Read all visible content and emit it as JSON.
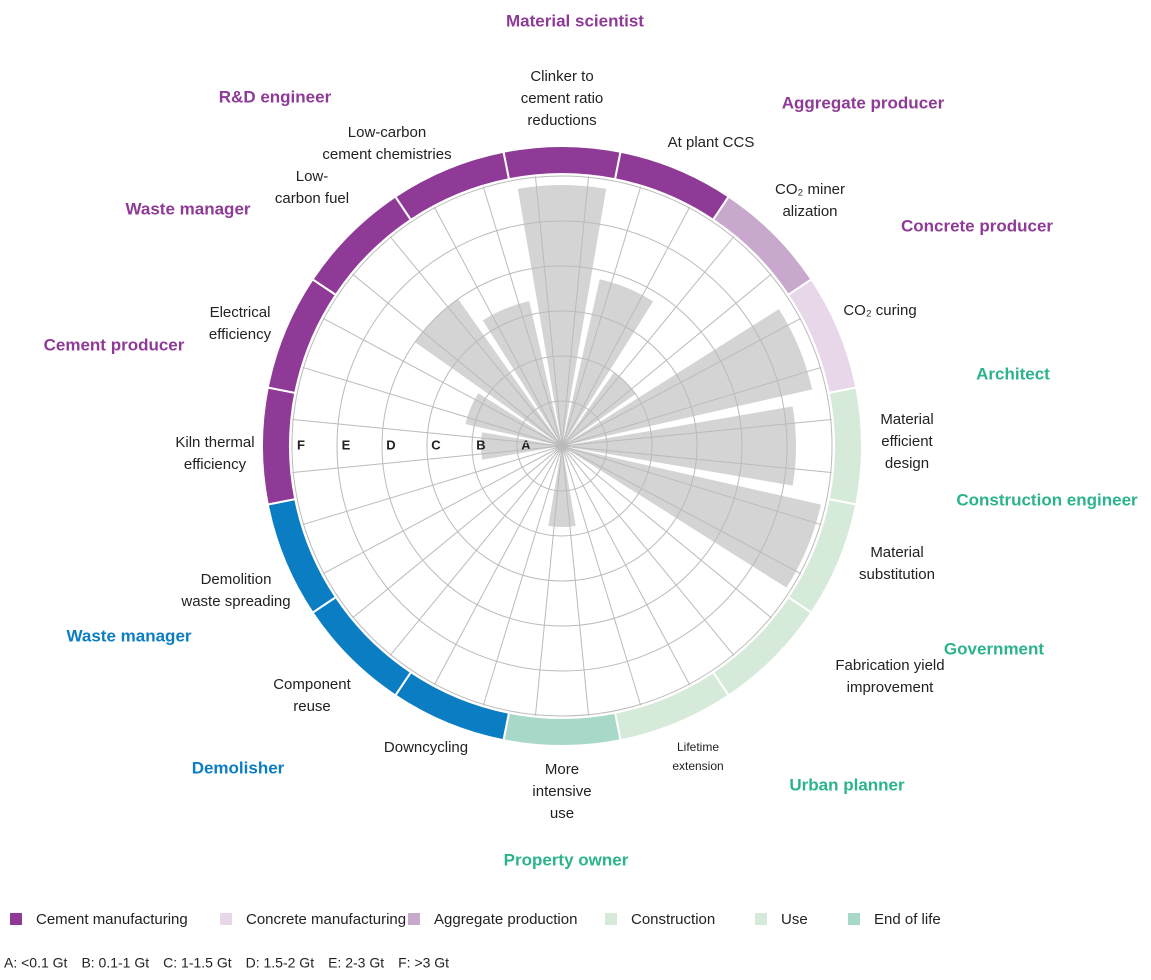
{
  "chart_data": {
    "type": "radial_bar",
    "roles": [
      {
        "name": "Material scientist",
        "color": "#8e3a96"
      },
      {
        "name": "Aggregate producer",
        "color": "#8e3a96"
      },
      {
        "name": "Concrete producer",
        "color": "#8e3a96"
      },
      {
        "name": "Architect",
        "color": "#2bb38e"
      },
      {
        "name": "Construction engineer",
        "color": "#2bb38e"
      },
      {
        "name": "Government",
        "color": "#2bb38e"
      },
      {
        "name": "Urban planner",
        "color": "#2bb38e"
      },
      {
        "name": "Property owner",
        "color": "#2bb38e"
      },
      {
        "name": "Demolisher",
        "color": "#0b7dc2"
      },
      {
        "name": "Waste manager",
        "color": "#0b7dc2"
      },
      {
        "name": "Cement producer",
        "color": "#8e3a96"
      },
      {
        "name": "Waste manager",
        "color": "#8e3a96"
      },
      {
        "name": "R&D engineer",
        "color": "#8e3a96"
      }
    ],
    "categories": [
      [
        "Clinker to",
        "cement ratio",
        "reductions"
      ],
      [
        "At plant CCS"
      ],
      [
        "CO₂ miner",
        "alization"
      ],
      [
        "CO₂ curing"
      ],
      [
        "Material",
        "efficient",
        "design"
      ],
      [
        "Material",
        "substitution"
      ],
      [
        "Fabrication yield",
        "improvement"
      ],
      [
        "Lifetime",
        "extension"
      ],
      [
        "More",
        "intensive",
        "use"
      ],
      [
        "Downcycling"
      ],
      [
        "Component",
        "reuse"
      ],
      [
        "Demolition",
        "waste spreading"
      ],
      [
        "Kiln thermal",
        "efficiency"
      ],
      [
        "Electrical",
        "efficiency"
      ],
      [
        "Low-",
        "carbon fuel"
      ],
      [
        "Low-carbon",
        "cement chemistries"
      ]
    ],
    "values": [
      5.8,
      3.8,
      2,
      5.7,
      5.2,
      5.9,
      0,
      0,
      1.8,
      0,
      0,
      0,
      1.8,
      2.2,
      4,
      3.3
    ],
    "color": "#d4d4d4",
    "ring_colors": [
      "#8e3a96",
      "#8e3a96",
      "#c9a8cd",
      "#e8d6e9",
      "#d6ead9",
      "#d6ead9",
      "#d6ead9",
      "#d6ead9",
      "#a8d8c8",
      "#0b7dc2",
      "#0b7dc2",
      "#0b7dc2",
      "#8e3a96",
      "#8e3a96",
      "#8e3a96",
      "#8e3a96"
    ],
    "rlim": [
      0,
      6
    ],
    "rticks": [
      {
        "value": 1,
        "label": "A"
      },
      {
        "value": 2,
        "label": "B"
      },
      {
        "value": 3,
        "label": "C"
      },
      {
        "value": 4,
        "label": "D"
      },
      {
        "value": 5,
        "label": "E"
      },
      {
        "value": 6,
        "label": "F"
      }
    ],
    "legend": [
      {
        "name": "Cement manufacturing",
        "color": "#8e3a96"
      },
      {
        "name": "Concrete manufacturing",
        "color": "#e8d6e9"
      },
      {
        "name": "Aggregate production",
        "color": "#c9a8cd"
      },
      {
        "name": "Construction",
        "color": "#d6ead9"
      },
      {
        "name": "Use",
        "color": "#d6ead9"
      },
      {
        "name": "End of life",
        "color": "#a8d8c8"
      }
    ],
    "notes": [
      "A: <0.1 Gt",
      "B: 0.1-1 Gt",
      "C: 1-1.5 Gt",
      "D: 1.5-2 Gt",
      "E: 2-3 Gt",
      "F: >3 Gt"
    ]
  }
}
